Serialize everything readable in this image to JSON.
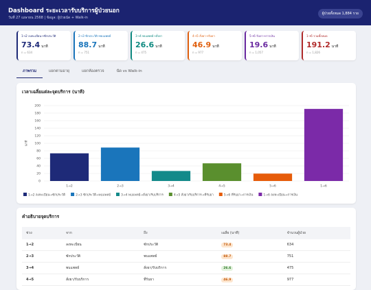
{
  "header": {
    "title": "Dashboard ระยะเวลารับบริการผู้ป่วยนอก",
    "subtitle": "วันที่ 27 เมษายน 2568 | ข้อมูล: ผู้ป่วยนัด + Walk-in",
    "badge": "ผู้ป่วยทั้งหมด 1,884 ราย"
  },
  "kpis": [
    {
      "label": "1→2 ลงทะเบียน→ซักประวัติ",
      "value": 73.4,
      "unit": "นาที",
      "n": "n = 634",
      "color": "#1e2a78"
    },
    {
      "label": "2→3 ซักประวัติ→พบแพทย์",
      "value": 88.7,
      "unit": "นาที",
      "n": "n = 751",
      "color": "#1a75bb"
    },
    {
      "label": "3→4 พบแพทย์→สั่งยา",
      "value": 26.6,
      "unit": "นาที",
      "n": "n = 475",
      "color": "#0f8a80"
    },
    {
      "label": "4→5 สั่งยา→รับยา",
      "value": 46.9,
      "unit": "นาที",
      "n": "n = 977",
      "color": "#e0600f"
    },
    {
      "label": "5→6 รับยา→การเงิน",
      "value": 19.6,
      "unit": "นาที",
      "n": "n = 1,057",
      "color": "#6a2aa0"
    },
    {
      "label": "1→6 รวมทั้งหมด",
      "value": 191.2,
      "unit": "นาที",
      "n": "n = 1,826",
      "color": "#b02a2a"
    }
  ],
  "tabs": [
    "ภาพรวม",
    "แยกตามอายุ",
    "แยกห้องตรวจ",
    "นัด vs Walk-in"
  ],
  "chart_data": {
    "type": "bar",
    "title": "เวลาเฉลี่ยแต่ละจุดบริการ (นาที)",
    "y_label": "นาที",
    "categories": [
      "1→2",
      "2→3",
      "3→4",
      "4→5",
      "5→6",
      "1→6"
    ],
    "values": [
      73.4,
      88.7,
      26.6,
      46.9,
      19.6,
      191.2
    ],
    "colors": [
      "#1e2a78",
      "#1a75bb",
      "#138a8a",
      "#5a8f2e",
      "#e65c0a",
      "#7b2aa8"
    ],
    "legend": [
      "1→2 ลงทะเบียน→ซักประวัติ",
      "2→3 ซักประวัติ→พบแพทย์",
      "3→4 พบแพทย์→สั่งยา/รับบริการ",
      "4→5 สั่งยา/รับบริการ→ที่รับยา",
      "5→6 ที่รับยา→การเงิน",
      "1→6 ลงทะเบียน→การเงิน"
    ],
    "ylim": [
      0,
      200
    ],
    "yticks": [
      0,
      20,
      40,
      60,
      80,
      100,
      120,
      140,
      160,
      180,
      200
    ],
    "grid": true
  },
  "table": {
    "title": "คำอธิบายจุดบริการ",
    "columns": [
      "ช่วง",
      "จาก",
      "ถึง",
      "เฉลี่ย (นาที)",
      "จำนวนผู้ป่วย"
    ],
    "rows": [
      [
        "1→2",
        "ลงทะเบียน",
        "ซักประวัติ",
        73.4,
        634
      ],
      [
        "2→3",
        "ซักประวัติ",
        "พบแพทย์",
        88.7,
        751
      ],
      [
        "3→4",
        "พบแพทย์",
        "สั่งยา/รับบริการ",
        26.6,
        475
      ],
      [
        "4→5",
        "สั่งยา/รับบริการ",
        "ที่รับยา",
        46.9,
        977
      ]
    ]
  }
}
